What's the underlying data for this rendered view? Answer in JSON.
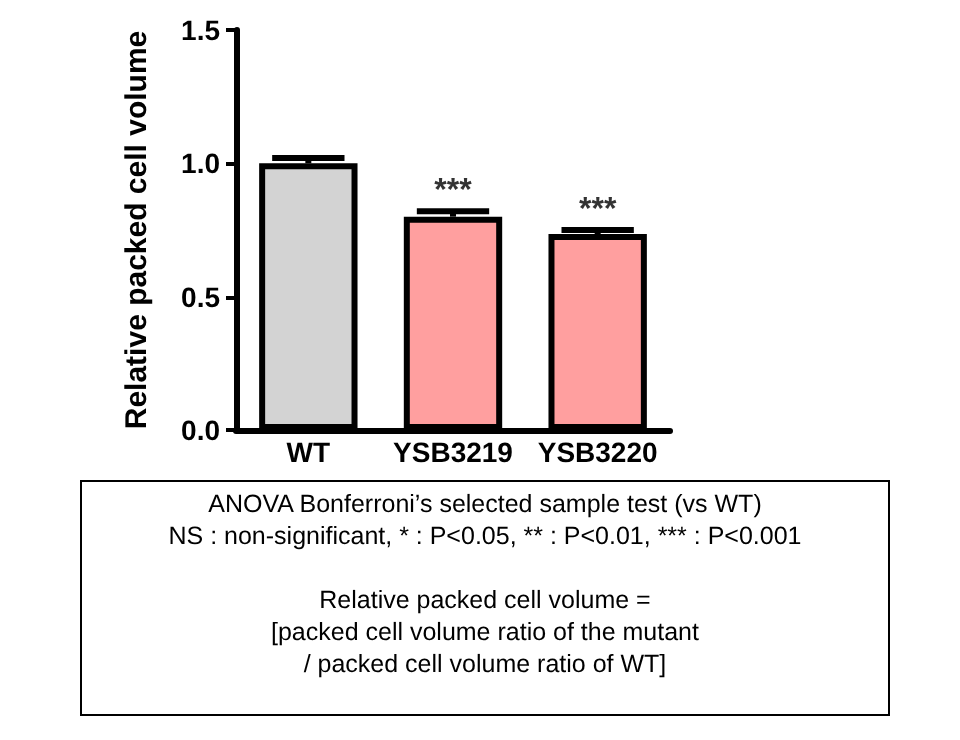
{
  "chart_data": {
    "type": "bar",
    "ylabel": "Relative packed cell volume",
    "categories": [
      "WT",
      "YSB3219",
      "YSB3220"
    ],
    "values": [
      1.0,
      0.8,
      0.735
    ],
    "colors": [
      "#d3d3d3",
      "#ff9f9f",
      "#ff9f9f"
    ],
    "errors": [
      0.02,
      0.02,
      0.015
    ],
    "ylim": [
      0,
      1.5
    ],
    "yticks": [
      {
        "value": 0,
        "label": "0.0"
      },
      {
        "value": 0.5,
        "label": "0.5"
      },
      {
        "value": 1,
        "label": "1.0"
      },
      {
        "value": 1.5,
        "label": "1.5"
      }
    ],
    "grid": false,
    "annotations": [
      {
        "text": "***",
        "x": "YSB3219",
        "y": 0.82
      },
      {
        "text": "***",
        "x": "YSB3220",
        "y": 0.75
      },
      "ANOVA Bonferroni’s selected sample test (vs WT)",
      "NS : non-significant, * : P<0.05, ** : P<0.01, *** : P<0.001",
      "Relative packed cell volume =",
      "[packed cell volume ratio of the mutant",
      "/ packed cell volume ratio of WT]"
    ]
  }
}
